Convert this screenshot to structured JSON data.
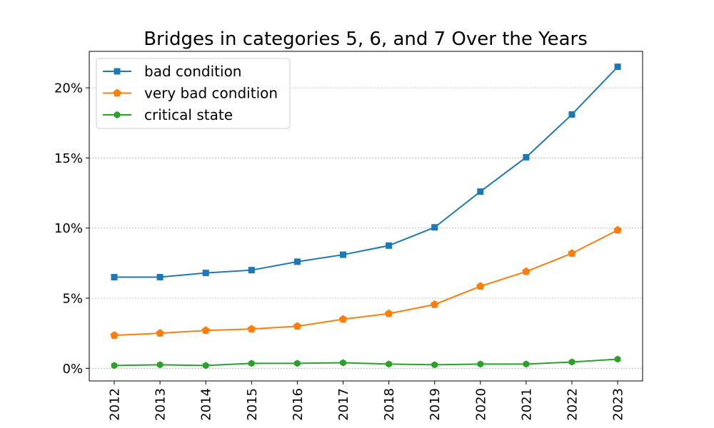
{
  "chart_data": {
    "type": "line",
    "title": "Bridges in categories 5, 6, and 7 Over the Years",
    "xlabel": "",
    "ylabel": "",
    "categories": [
      "2012",
      "2013",
      "2014",
      "2015",
      "2016",
      "2017",
      "2018",
      "2019",
      "2020",
      "2021",
      "2022",
      "2023"
    ],
    "ylim": [
      -0.9,
      22.6
    ],
    "yticks": [
      0,
      5,
      10,
      15,
      20
    ],
    "ytick_labels": [
      "0%",
      "5%",
      "10%",
      "15%",
      "20%"
    ],
    "grid": "horizontal-dashed",
    "legend_position": "top-left",
    "series": [
      {
        "name": "bad condition",
        "marker": "square",
        "color": "#1f77b4",
        "values": [
          6.5,
          6.5,
          6.8,
          7.0,
          7.6,
          8.1,
          8.75,
          10.05,
          12.6,
          15.05,
          18.1,
          21.5
        ]
      },
      {
        "name": "very bad condition",
        "marker": "pentagon",
        "color": "#ff7f0e",
        "values": [
          2.35,
          2.5,
          2.7,
          2.8,
          3.0,
          3.5,
          3.9,
          4.55,
          5.85,
          6.9,
          8.2,
          9.85
        ]
      },
      {
        "name": "critical state",
        "marker": "hexagon",
        "color": "#2ca02c",
        "values": [
          0.2,
          0.25,
          0.2,
          0.35,
          0.35,
          0.4,
          0.3,
          0.25,
          0.3,
          0.3,
          0.45,
          0.65
        ]
      }
    ]
  }
}
